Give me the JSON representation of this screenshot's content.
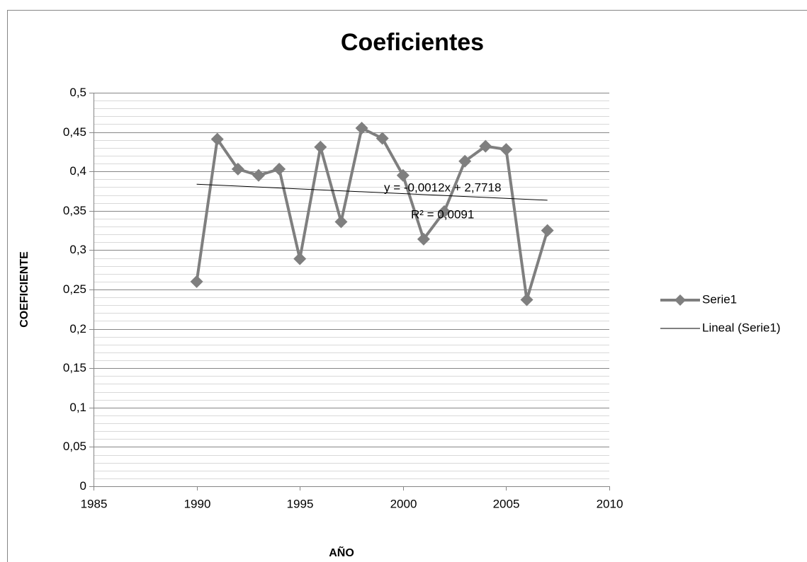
{
  "chart_data": {
    "type": "scatter-line",
    "title": "Coeficientes",
    "x_label": "AÑO",
    "y_label": "COEFICIENTE",
    "x": [
      1990,
      1991,
      1992,
      1993,
      1994,
      1995,
      1996,
      1997,
      1998,
      1999,
      2000,
      2001,
      2002,
      2003,
      2004,
      2005,
      2006,
      2007
    ],
    "series": [
      {
        "name": "Serie1",
        "color": "#7f7f7f",
        "values": [
          0.26,
          0.441,
          0.403,
          0.395,
          0.403,
          0.289,
          0.431,
          0.336,
          0.455,
          0.442,
          0.395,
          0.314,
          0.349,
          0.413,
          0.432,
          0.428,
          0.237,
          0.325
        ]
      }
    ],
    "trendline": {
      "name": "Lineal (Serie1)",
      "color": "#000000",
      "x": [
        1990,
        2007
      ],
      "values": [
        0.3838,
        0.3634
      ],
      "equation": "y = -0,0012x + 2,7718",
      "r2": "R² = 0,0091"
    },
    "xlim": [
      1985,
      2010
    ],
    "xticks": [
      1985,
      1990,
      1995,
      2000,
      2005,
      2010
    ],
    "ylim": [
      0,
      0.5
    ],
    "yticks": [
      0,
      {
        "value": 0.05,
        "label": "0,05"
      },
      {
        "value": 0.1,
        "label": "0,1"
      },
      {
        "value": 0.15,
        "label": "0,15"
      },
      {
        "value": 0.2,
        "label": "0,2"
      },
      {
        "value": 0.25,
        "label": "0,25"
      },
      {
        "value": 0.3,
        "label": "0,3"
      },
      {
        "value": 0.35,
        "label": "0,35"
      },
      {
        "value": 0.4,
        "label": "0,4"
      },
      {
        "value": 0.45,
        "label": "0,45"
      },
      {
        "value": 0.5,
        "label": "0,5"
      }
    ],
    "grid": true,
    "minor_grid_step": 0.01,
    "legend": "right"
  }
}
